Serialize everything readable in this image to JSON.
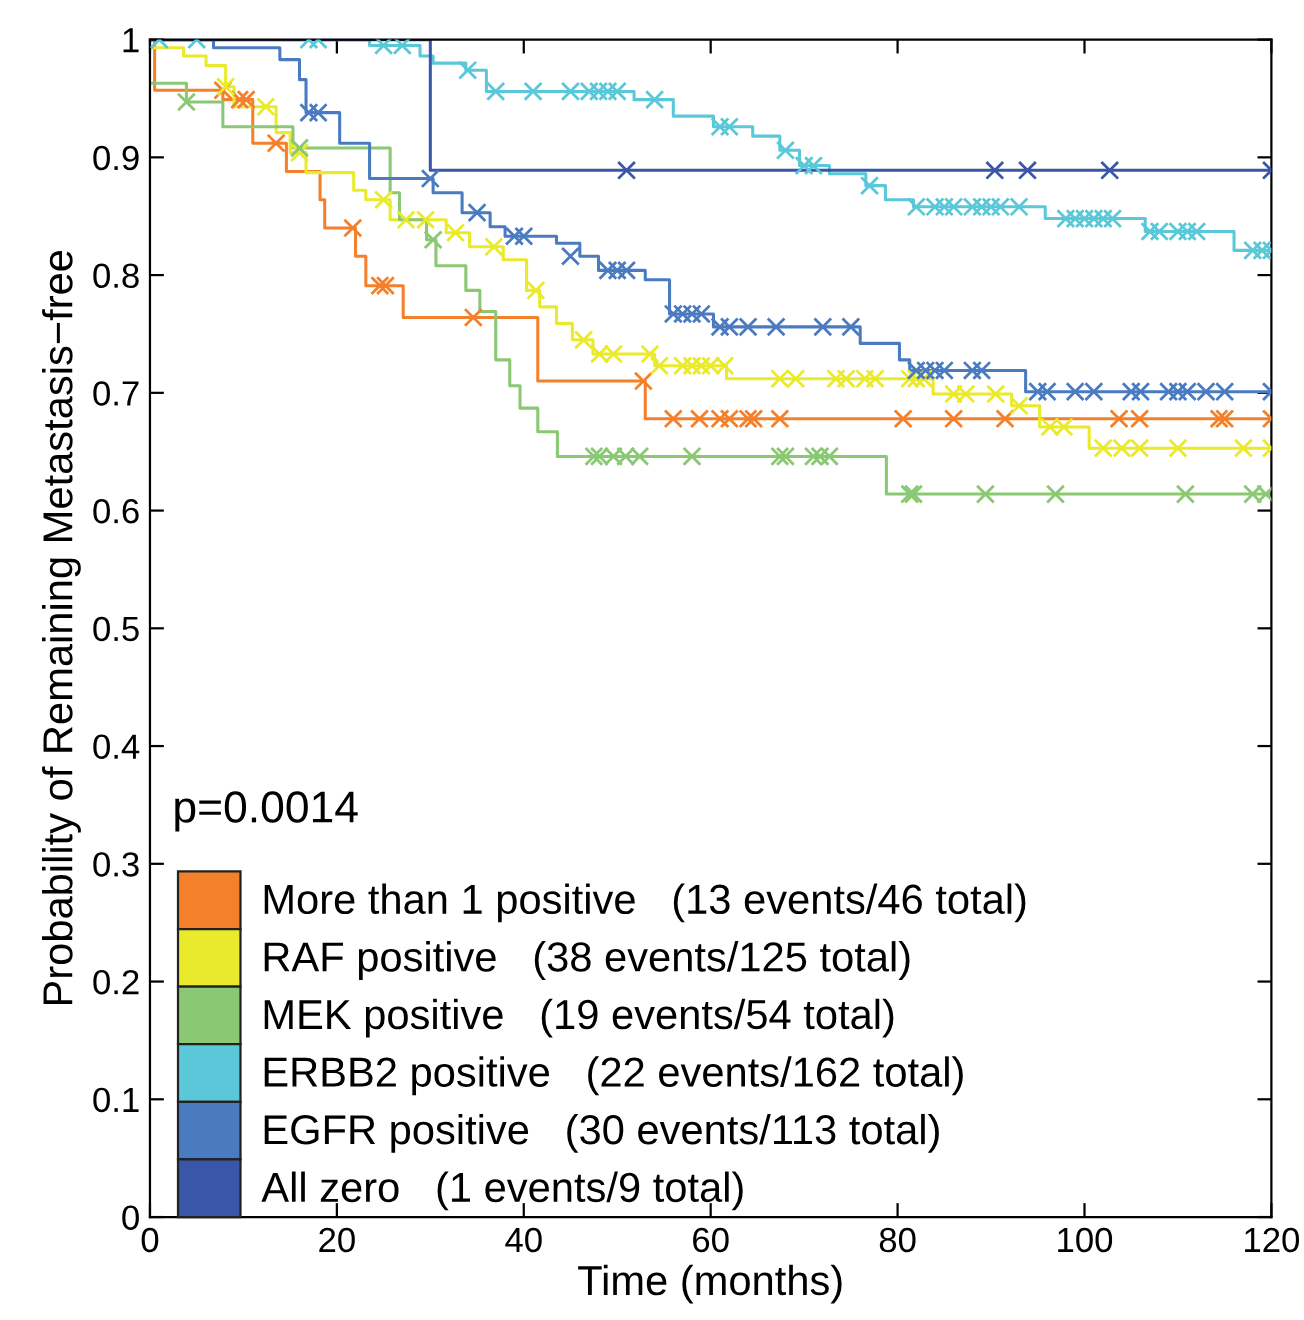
{
  "chart_data": {
    "type": "step",
    "xlabel": "Time (months)",
    "ylabel": "Probability of Remaining Metastasis−free",
    "xlim": [
      0,
      120
    ],
    "ylim": [
      0,
      1
    ],
    "xticks": [
      0,
      20,
      40,
      60,
      80,
      100,
      120
    ],
    "yticks": [
      0,
      0.1,
      0.2,
      0.3,
      0.4,
      0.5,
      0.6,
      0.7,
      0.8,
      0.9,
      1
    ],
    "grid": false,
    "legend": "bottom left",
    "line_style": "solid",
    "annotations": [
      "p=0.0014"
    ],
    "series": [
      {
        "name": "More than 1 positive   (13 events/46 total)",
        "color": "#f4802b",
        "x": [
          0,
          0.5,
          7.8,
          11,
          14.6,
          18.2,
          18.7,
          22,
          23.1,
          27.1,
          41.5,
          53,
          120
        ],
        "values": [
          1,
          0.957,
          0.949,
          0.912,
          0.888,
          0.864,
          0.84,
          0.816,
          0.791,
          0.764,
          0.71,
          0.678,
          0.678
        ]
      },
      {
        "name": "RAF positive   (38 events/125 total)",
        "color": "#eaea2c",
        "x": [
          0,
          3.6,
          6,
          8.1,
          9,
          13.5,
          15,
          16.7,
          21.8,
          23.1,
          25.7,
          31.7,
          34.2,
          37.8,
          40.3,
          41.7,
          43.5,
          45.2,
          47.4,
          54,
          61.7,
          83.8,
          92.2,
          95.2,
          100.5,
          120
        ],
        "values": [
          0.993,
          0.986,
          0.978,
          0.96,
          0.943,
          0.921,
          0.904,
          0.887,
          0.872,
          0.864,
          0.847,
          0.836,
          0.824,
          0.813,
          0.787,
          0.773,
          0.759,
          0.745,
          0.733,
          0.723,
          0.712,
          0.699,
          0.689,
          0.671,
          0.653,
          0.653
        ]
      },
      {
        "name": "MEK positive   (19 events/54 total)",
        "color": "#8ac873",
        "x": [
          0,
          3.9,
          7.8,
          15.3,
          25.7,
          26.7,
          29.6,
          30.6,
          33.8,
          35.3,
          37,
          38.5,
          39.6,
          41.5,
          43.6,
          78.8,
          120
        ],
        "values": [
          0.963,
          0.947,
          0.926,
          0.908,
          0.87,
          0.847,
          0.83,
          0.808,
          0.787,
          0.769,
          0.728,
          0.706,
          0.687,
          0.667,
          0.646,
          0.614,
          0.614
        ]
      },
      {
        "name": "ERBB2 positive   (22 events/162 total)",
        "color": "#5ac8d8",
        "x": [
          0,
          23.5,
          28.9,
          30.3,
          33.8,
          36,
          51.8,
          56,
          60.3,
          64.5,
          67.4,
          69.5,
          72.7,
          76.6,
          78.7,
          81.7,
          95.8,
          106.5,
          116,
          120
        ],
        "values": [
          1,
          0.995,
          0.986,
          0.98,
          0.974,
          0.956,
          0.949,
          0.935,
          0.926,
          0.918,
          0.906,
          0.893,
          0.886,
          0.876,
          0.864,
          0.858,
          0.848,
          0.837,
          0.821,
          0.821
        ]
      },
      {
        "name": "EGFR positive   (30 events/113 total)",
        "color": "#4a7bc1",
        "x": [
          0,
          6.8,
          13.9,
          16,
          16.7,
          20.3,
          23.5,
          30.3,
          33.4,
          36.4,
          38,
          43.5,
          46,
          48,
          53,
          55.6,
          60.3,
          76,
          80.2,
          81.3,
          93.7,
          120
        ],
        "values": [
          1,
          0.993,
          0.983,
          0.966,
          0.938,
          0.912,
          0.882,
          0.87,
          0.853,
          0.841,
          0.833,
          0.827,
          0.816,
          0.804,
          0.796,
          0.767,
          0.756,
          0.742,
          0.728,
          0.719,
          0.701,
          0.701
        ]
      },
      {
        "name": "All zero   (1 events/9 total)",
        "color": "#3a56a8",
        "x": [
          0,
          30,
          120
        ],
        "values": [
          1,
          0.889,
          0.889
        ]
      },
      {
        "type": "scatter",
        "marker": "cross",
        "color": "#f4802b",
        "x": [
          7.8,
          9.6,
          10.3,
          13.5,
          21.7,
          24.6,
          25.2,
          34.6,
          52.8,
          56,
          58.8,
          61,
          62,
          64,
          64.6,
          67.4,
          80.6,
          86,
          91.5,
          103.7,
          105.9,
          114.4,
          115,
          120
        ],
        "values": [
          0.957,
          0.949,
          0.949,
          0.912,
          0.84,
          0.791,
          0.791,
          0.764,
          0.71,
          0.678,
          0.678,
          0.678,
          0.678,
          0.678,
          0.678,
          0.678,
          0.678,
          0.678,
          0.678,
          0.678,
          0.678,
          0.678,
          0.678,
          0.678
        ]
      },
      {
        "type": "scatter",
        "marker": "cross",
        "color": "#eaea2c",
        "x": [
          8.1,
          12.4,
          16,
          25,
          27.4,
          29.5,
          32.7,
          36.8,
          41.3,
          46.4,
          48.1,
          49.6,
          53.5,
          54.5,
          57,
          58,
          59,
          60,
          61.5,
          67.4,
          69.1,
          73.4,
          74.5,
          76.5,
          77.6,
          81.3,
          82,
          82.8,
          86,
          87.3,
          90.5,
          93,
          96.3,
          97.8,
          102,
          104,
          105.9,
          110,
          117,
          120
        ],
        "values": [
          0.96,
          0.943,
          0.904,
          0.864,
          0.847,
          0.847,
          0.836,
          0.824,
          0.787,
          0.745,
          0.733,
          0.733,
          0.733,
          0.723,
          0.723,
          0.723,
          0.723,
          0.723,
          0.723,
          0.712,
          0.712,
          0.712,
          0.712,
          0.712,
          0.712,
          0.712,
          0.712,
          0.712,
          0.699,
          0.699,
          0.699,
          0.689,
          0.671,
          0.671,
          0.653,
          0.653,
          0.653,
          0.653,
          0.653,
          0.653
        ]
      },
      {
        "type": "scatter",
        "marker": "cross",
        "color": "#8ac873",
        "x": [
          3.9,
          16,
          30.3,
          47.5,
          48.1,
          49.6,
          50.9,
          52.4,
          58,
          67.4,
          68,
          71,
          71.7,
          72.7,
          81.3,
          81.7,
          89.4,
          96.9,
          110.8,
          118,
          119.4
        ],
        "values": [
          0.947,
          0.908,
          0.83,
          0.646,
          0.646,
          0.646,
          0.646,
          0.646,
          0.646,
          0.646,
          0.646,
          0.646,
          0.646,
          0.646,
          0.614,
          0.614,
          0.614,
          0.614,
          0.614,
          0.614,
          0.614
        ]
      },
      {
        "type": "scatter",
        "marker": "cross",
        "color": "#5ac8d8",
        "x": [
          1,
          5,
          17,
          18,
          25,
          27,
          34,
          37,
          41,
          45,
          47,
          48,
          49,
          50,
          54,
          61,
          62,
          68,
          70,
          71,
          77,
          82,
          84,
          85,
          86,
          88,
          89,
          90,
          91,
          93,
          98,
          99,
          100,
          101,
          102,
          103,
          107,
          108,
          110,
          111,
          112,
          118,
          119,
          120
        ],
        "values": [
          1,
          1,
          1,
          1,
          0.995,
          0.995,
          0.974,
          0.956,
          0.956,
          0.956,
          0.956,
          0.956,
          0.956,
          0.956,
          0.949,
          0.926,
          0.926,
          0.906,
          0.893,
          0.893,
          0.876,
          0.858,
          0.858,
          0.858,
          0.858,
          0.858,
          0.858,
          0.858,
          0.858,
          0.858,
          0.848,
          0.848,
          0.848,
          0.848,
          0.848,
          0.848,
          0.837,
          0.837,
          0.837,
          0.837,
          0.837,
          0.821,
          0.821,
          0.821
        ]
      },
      {
        "type": "scatter",
        "marker": "cross",
        "color": "#4a7bc1",
        "x": [
          17,
          18,
          30,
          35,
          39,
          40,
          45,
          49,
          50,
          51,
          56,
          57,
          58,
          59,
          61,
          62,
          64,
          67,
          72,
          75,
          82,
          83,
          84,
          85,
          88,
          89,
          95,
          96,
          99,
          101,
          105,
          106,
          109,
          110,
          111,
          113,
          115,
          120
        ],
        "values": [
          0.938,
          0.938,
          0.882,
          0.853,
          0.833,
          0.833,
          0.816,
          0.804,
          0.804,
          0.804,
          0.767,
          0.767,
          0.767,
          0.767,
          0.756,
          0.756,
          0.756,
          0.756,
          0.756,
          0.756,
          0.719,
          0.719,
          0.719,
          0.719,
          0.719,
          0.719,
          0.701,
          0.701,
          0.701,
          0.701,
          0.701,
          0.701,
          0.701,
          0.701,
          0.701,
          0.701,
          0.701,
          0.701
        ]
      },
      {
        "type": "scatter",
        "marker": "cross",
        "color": "#3a56a8",
        "x": [
          51,
          90.4,
          93.9,
          102.7,
          120
        ],
        "values": [
          0.889,
          0.889,
          0.889,
          0.889,
          0.889
        ]
      }
    ]
  }
}
